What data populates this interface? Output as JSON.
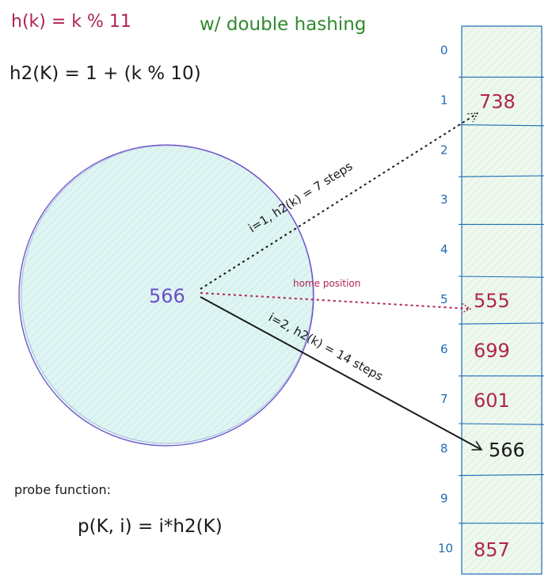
{
  "header": {
    "hash_formula": "h(k) = k % 11",
    "double_hashing_note": "w/ double hashing",
    "secondary_hash_formula": "h2(K) = 1 + (k % 10)"
  },
  "probe": {
    "label": "probe function:",
    "formula": "p(K, i) = i*h2(K)"
  },
  "key": {
    "value": "566"
  },
  "arrows": {
    "home_position": "home position",
    "probe_1": "i=1, h2(k) = 7 steps",
    "probe_2": "i=2, h2(k) = 14 steps"
  },
  "table": {
    "slots": [
      {
        "index": "0",
        "value": ""
      },
      {
        "index": "1",
        "value": "738"
      },
      {
        "index": "2",
        "value": ""
      },
      {
        "index": "3",
        "value": ""
      },
      {
        "index": "4",
        "value": ""
      },
      {
        "index": "5",
        "value": "555"
      },
      {
        "index": "6",
        "value": "699"
      },
      {
        "index": "7",
        "value": "601"
      },
      {
        "index": "8",
        "value": "566"
      },
      {
        "index": "9",
        "value": ""
      },
      {
        "index": "10",
        "value": "857"
      }
    ]
  },
  "colors": {
    "maroon": "#b0244f",
    "green": "#2f8a2f",
    "blue": "#1c6bb5",
    "purple": "#6a4fc8",
    "circle_fill": "#dff5f3",
    "table_fill": "#e6f5e6",
    "ink": "#1a1a1a"
  }
}
